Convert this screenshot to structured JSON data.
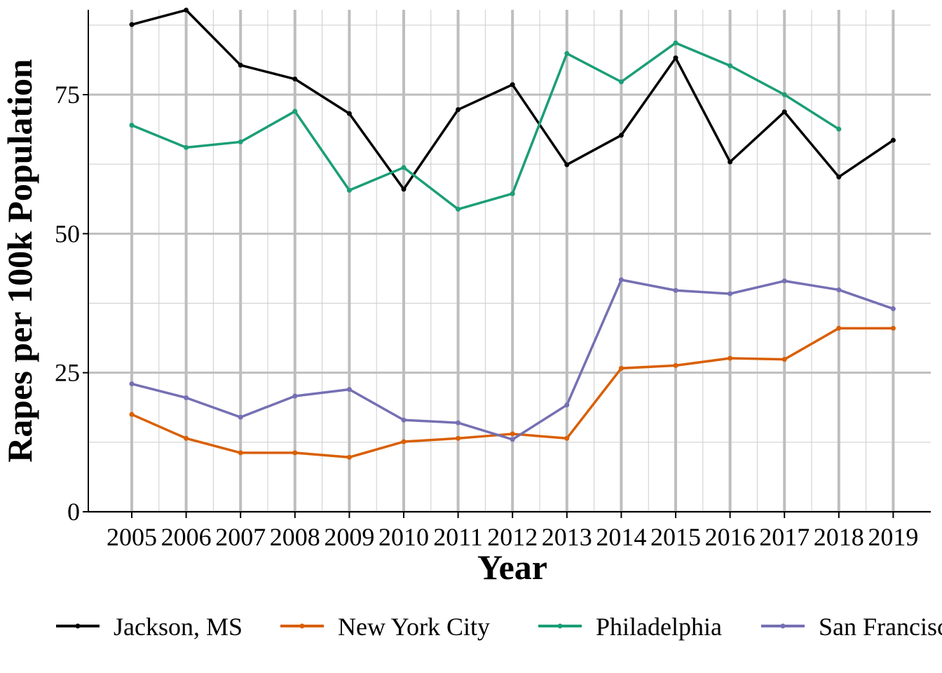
{
  "chart_data": {
    "type": "line",
    "title": "",
    "xlabel": "Year",
    "ylabel": "Rapes per 100k Population",
    "x": [
      2005,
      2006,
      2007,
      2008,
      2009,
      2010,
      2011,
      2012,
      2013,
      2014,
      2015,
      2016,
      2017,
      2018,
      2019
    ],
    "x_tick_labels": [
      "2005",
      "2006",
      "2007",
      "2008",
      "2009",
      "2010",
      "2011",
      "2012",
      "2013",
      "2014",
      "2015",
      "2016",
      "2017",
      "2018",
      "2019"
    ],
    "ylim": [
      0,
      90
    ],
    "y_ticks": [
      0,
      25,
      50,
      75
    ],
    "y_tick_labels": [
      "0",
      "25",
      "50",
      "75"
    ],
    "grid": true,
    "legend_position": "bottom",
    "series": [
      {
        "name": "Jackson, MS",
        "color": "#000000",
        "values": [
          87.6,
          90.2,
          80.3,
          77.8,
          71.6,
          58.0,
          72.3,
          76.8,
          62.4,
          67.7,
          81.6,
          62.9,
          71.9,
          60.2,
          66.8
        ]
      },
      {
        "name": "New York City",
        "color": "#D95F02",
        "values": [
          17.5,
          13.2,
          10.6,
          10.6,
          9.8,
          12.6,
          13.2,
          14.0,
          13.2,
          25.8,
          26.3,
          27.6,
          27.4,
          33.0,
          33.0
        ]
      },
      {
        "name": "Philadelphia",
        "color": "#1B9E77",
        "values": [
          69.5,
          65.5,
          66.5,
          72.0,
          57.8,
          61.9,
          54.4,
          57.2,
          82.4,
          77.3,
          84.3,
          80.2,
          75.0,
          68.8,
          null
        ]
      },
      {
        "name": "San Francisco",
        "color": "#7570B3",
        "values": [
          23.0,
          20.5,
          17.0,
          20.8,
          22.0,
          16.5,
          16.0,
          13.0,
          19.2,
          41.7,
          39.8,
          39.2,
          41.5,
          39.9,
          36.5
        ]
      }
    ]
  }
}
